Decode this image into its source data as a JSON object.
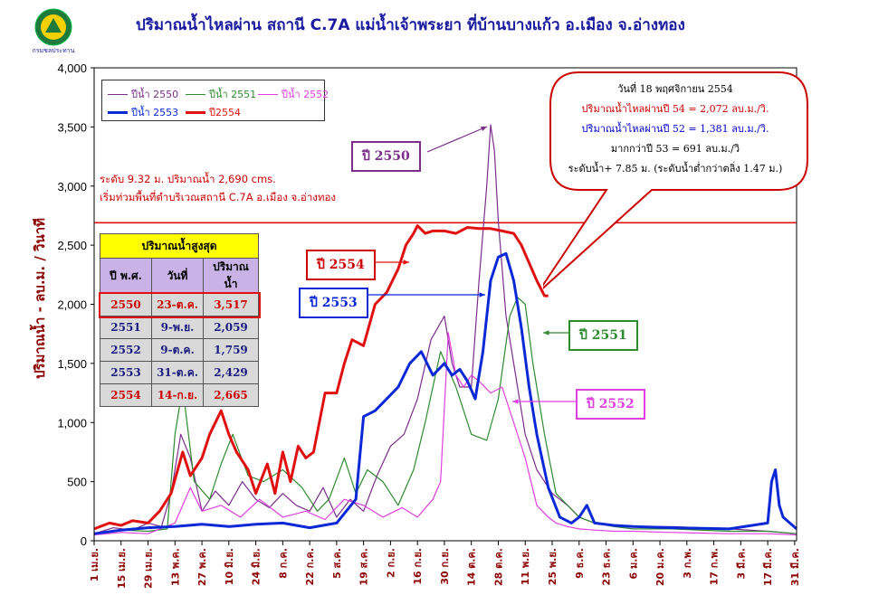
{
  "title": "ปริมาณน้ำไหลผ่าน สถานี C.7A แม่น้ำเจ้าพระยา ที่บ้านบางแก้ว  อ.เมือง  จ.อ่างทอง",
  "logo_text": "กรมชลประทาน",
  "colors": {
    "y2550": "#7b2d8b",
    "y2551": "#2e8b2e",
    "y2552": "#e040e0",
    "y2553": "#0a28d6",
    "y2554": "#e01010",
    "axis_text": "#8b0000",
    "plot_bg": "#ffffff",
    "frame": "#000000"
  },
  "legend": [
    {
      "label": "ปีน้ำ 2550",
      "color": "#7b2d8b"
    },
    {
      "label": "ปีน้ำ 2551",
      "color": "#2e8b2e"
    },
    {
      "label": "ปีน้ำ 2552",
      "color": "#e040e0"
    },
    {
      "label": "ปีน้ำ 2553",
      "color": "#0a28d6"
    },
    {
      "label": "ปี2554",
      "color": "#e01010"
    }
  ],
  "notes": [
    "ระดับ 9.32 ม. ปริมาณน้ำ 2,690 cms.",
    "เริ่มท่วมพื้นที่ตำบริเวณสถานี C.7A อ.เมือง จ.อ่างทอง"
  ],
  "max_table": {
    "title": "ปริมาณน้ำสูงสุด",
    "headers": [
      "ปี พ.ศ.",
      "วันที่",
      "ปริมาณน้ำ"
    ],
    "rows": [
      [
        "2550",
        "23-ต.ค.",
        "3,517"
      ],
      [
        "2551",
        "9-พ.ย.",
        "2,059"
      ],
      [
        "2552",
        "9-ต.ค.",
        "1,759"
      ],
      [
        "2553",
        "31-ต.ค.",
        "2,429"
      ],
      [
        "2554",
        "14-ก.ย.",
        "2,665"
      ]
    ]
  },
  "callouts": {
    "c2550": "ปี 2550",
    "c2554": "ปี 2554",
    "c2553": "ปี 2553",
    "c2551": "ปี 2551",
    "c2552": "ปี 2552"
  },
  "info_box": [
    "วันที่ 18  พฤศจิกายน  2554",
    "ปริมาณน้ำไหลผ่านปี 54 = 2,072 ลบ.ม./วิ.",
    "ปริมาณน้ำไหลผ่านปี 52 = 1,381 ลบ.ม./วิ.",
    "มากกว่าปี 53 =  691 ลบ.ม./วิ",
    "ระดับน้ำ+ 7.85 ม. (ระดับน้ำต่ำกว่าตลิ่ง 1.47 ม.)"
  ],
  "info_colors": [
    "#000000",
    "#cc0000",
    "#0000cc",
    "#000000",
    "#000000"
  ],
  "chart_data": {
    "type": "line",
    "ylabel": "ปริมาณน้ำ - ลบ.ม. / วินาที",
    "xlabel": "",
    "ylim": [
      0,
      4000
    ],
    "yticks": [
      "0",
      "500",
      "1,000",
      "1,500",
      "2,000",
      "2,500",
      "3,000",
      "3,500",
      "4,000"
    ],
    "ytick_values": [
      0,
      500,
      1000,
      1500,
      2000,
      2500,
      3000,
      3500,
      4000
    ],
    "xticks": [
      "1 เม.ย.",
      "15 เม.ย.",
      "29 เม.ย.",
      "13 พ.ค.",
      "27 พ.ค.",
      "10 มิ.ย.",
      "24 มิ.ย.",
      "8 ก.ค.",
      "22 ก.ค.",
      "5 ส.ค.",
      "19 ส.ค.",
      "2 ก.ย.",
      "16 ก.ย.",
      "30 ก.ย.",
      "14 ต.ค.",
      "28 ต.ค.",
      "11 พ.ย.",
      "25 พ.ย.",
      "9 ธ.ค.",
      "23 ธ.ค.",
      "6 ม.ค.",
      "20 ม.ค.",
      "3 ก.พ.",
      "17 ก.พ.",
      "3 มี.ค.",
      "17 มี.ค.",
      "31 มี.ค."
    ],
    "xtick_days": [
      0,
      14,
      28,
      42,
      56,
      70,
      84,
      98,
      112,
      126,
      140,
      154,
      168,
      182,
      196,
      210,
      224,
      238,
      252,
      266,
      280,
      294,
      308,
      322,
      336,
      350,
      364
    ],
    "xlim": [
      0,
      365
    ],
    "threshold": {
      "value": 2690,
      "label": "ระดับ 9.32 ม. ปริมาณน้ำ 2,690 cms."
    },
    "series": [
      {
        "name": "ปีน้ำ 2550",
        "color": "#7b2d8b",
        "width": 1.2,
        "x": [
          0,
          10,
          20,
          28,
          35,
          40,
          45,
          50,
          56,
          63,
          70,
          77,
          84,
          91,
          98,
          105,
          112,
          119,
          126,
          133,
          140,
          147,
          154,
          161,
          168,
          175,
          182,
          186,
          190,
          196,
          200,
          204,
          206,
          208,
          210,
          214,
          218,
          224,
          230,
          238,
          246,
          252,
          260,
          270,
          280,
          300,
          330,
          350,
          365
        ],
        "y": [
          60,
          110,
          90,
          150,
          120,
          400,
          900,
          700,
          250,
          420,
          300,
          500,
          350,
          280,
          400,
          300,
          250,
          450,
          200,
          350,
          250,
          550,
          800,
          900,
          1200,
          1700,
          1900,
          1500,
          1300,
          1300,
          2200,
          3000,
          3517,
          3300,
          2700,
          1900,
          1500,
          900,
          600,
          400,
          300,
          200,
          150,
          130,
          120,
          120,
          100,
          80,
          60
        ]
      },
      {
        "name": "ปีน้ำ 2551",
        "color": "#2e8b2e",
        "width": 1.2,
        "x": [
          0,
          14,
          28,
          38,
          42,
          46,
          52,
          60,
          66,
          72,
          80,
          88,
          98,
          108,
          116,
          122,
          130,
          136,
          142,
          150,
          158,
          166,
          172,
          180,
          188,
          196,
          204,
          210,
          216,
          220,
          224,
          228,
          234,
          240,
          246,
          252,
          260,
          270,
          280,
          300,
          330,
          350,
          365
        ],
        "y": [
          60,
          90,
          80,
          100,
          900,
          1300,
          500,
          350,
          650,
          900,
          550,
          500,
          600,
          450,
          250,
          350,
          700,
          400,
          600,
          500,
          300,
          600,
          1000,
          1600,
          1300,
          900,
          850,
          1200,
          1900,
          2059,
          2000,
          1500,
          900,
          400,
          300,
          200,
          150,
          120,
          100,
          100,
          80,
          80,
          60
        ]
      },
      {
        "name": "ปีน้ำ 2552",
        "color": "#e040e0",
        "width": 1.2,
        "x": [
          0,
          14,
          28,
          42,
          50,
          56,
          66,
          76,
          86,
          98,
          110,
          120,
          130,
          140,
          150,
          160,
          168,
          176,
          180,
          184,
          188,
          192,
          196,
          200,
          206,
          212,
          218,
          224,
          230,
          236,
          240,
          246,
          252,
          260,
          270,
          280,
          300,
          330,
          350,
          365
        ],
        "y": [
          50,
          70,
          60,
          150,
          450,
          250,
          300,
          200,
          350,
          200,
          250,
          180,
          350,
          300,
          200,
          280,
          200,
          350,
          500,
          1759,
          1400,
          1300,
          1400,
          1350,
          1250,
          1300,
          1000,
          700,
          300,
          200,
          150,
          120,
          100,
          90,
          80,
          80,
          70,
          60,
          60,
          50
        ]
      },
      {
        "name": "ปีน้ำ 2553",
        "color": "#0a28d6",
        "width": 3,
        "x": [
          0,
          14,
          28,
          42,
          56,
          70,
          84,
          98,
          112,
          126,
          136,
          140,
          146,
          152,
          158,
          164,
          170,
          176,
          182,
          186,
          190,
          194,
          198,
          202,
          206,
          210,
          214,
          218,
          222,
          226,
          230,
          236,
          242,
          248,
          252,
          256,
          260,
          270,
          280,
          300,
          330,
          350,
          352,
          354,
          356,
          358,
          365
        ],
        "y": [
          60,
          90,
          110,
          120,
          140,
          120,
          140,
          150,
          110,
          150,
          350,
          1050,
          1100,
          1200,
          1300,
          1500,
          1600,
          1400,
          1500,
          1400,
          1450,
          1350,
          1200,
          1600,
          2200,
          2400,
          2429,
          2200,
          1800,
          1300,
          900,
          450,
          200,
          150,
          200,
          300,
          150,
          130,
          120,
          110,
          100,
          150,
          500,
          600,
          300,
          200,
          100
        ]
      },
      {
        "name": "ปี2554",
        "color": "#e01010",
        "width": 3,
        "x": [
          0,
          8,
          14,
          20,
          28,
          34,
          40,
          46,
          50,
          56,
          60,
          66,
          70,
          74,
          80,
          84,
          90,
          94,
          98,
          102,
          106,
          110,
          114,
          120,
          126,
          130,
          134,
          140,
          146,
          152,
          158,
          162,
          166,
          168,
          172,
          176,
          182,
          188,
          194,
          200,
          206,
          212,
          218,
          222,
          226,
          230,
          234,
          236
        ],
        "y": [
          100,
          150,
          130,
          170,
          150,
          250,
          400,
          750,
          550,
          700,
          900,
          1100,
          900,
          750,
          600,
          400,
          650,
          400,
          750,
          500,
          800,
          700,
          750,
          1250,
          1250,
          1500,
          1700,
          1650,
          2000,
          2100,
          2300,
          2500,
          2600,
          2665,
          2600,
          2620,
          2620,
          2600,
          2650,
          2640,
          2640,
          2620,
          2600,
          2500,
          2350,
          2200,
          2072,
          2072
        ]
      }
    ]
  }
}
